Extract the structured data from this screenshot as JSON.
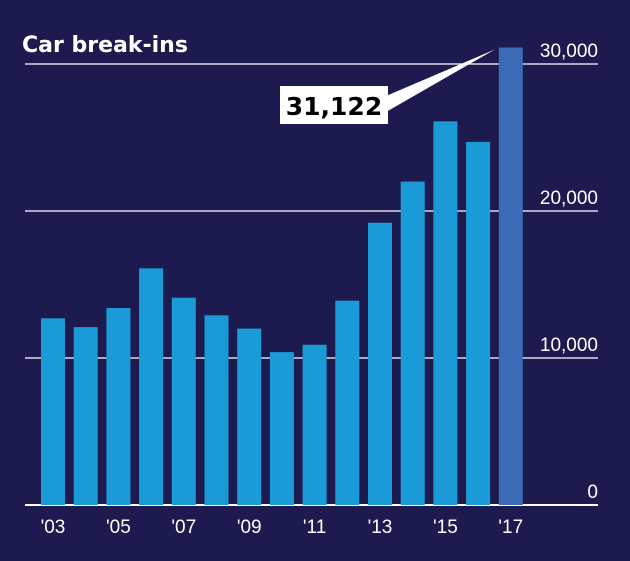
{
  "chart_data": {
    "type": "bar",
    "title": "Car break-ins",
    "xlabel": "",
    "ylabel": "",
    "categories": [
      "'03",
      "'04",
      "'05",
      "'06",
      "'07",
      "'08",
      "'09",
      "'10",
      "'11",
      "'12",
      "'13",
      "'14",
      "'15",
      "'16",
      "'17"
    ],
    "x_tick_labels": [
      "'03",
      "'05",
      "'07",
      "'09",
      "'11",
      "'13",
      "'15",
      "'17"
    ],
    "values": [
      12700,
      12100,
      13400,
      16100,
      14100,
      12900,
      12000,
      10400,
      10900,
      13900,
      19200,
      22000,
      26100,
      24700,
      31122
    ],
    "ylim": [
      0,
      31500
    ],
    "y_ticks": [
      0,
      10000,
      20000,
      30000
    ],
    "y_tick_labels": [
      "0",
      "10,000",
      "20,000",
      "30,000"
    ],
    "y_axis_position": "right",
    "grid": true,
    "annotation": {
      "category": "'17",
      "text": "31,122"
    },
    "colors": {
      "background": "#1d1a50",
      "bar": "#1a9bd7",
      "highlight_bar": "#3b6bb7",
      "grid": "#ffffff"
    }
  }
}
